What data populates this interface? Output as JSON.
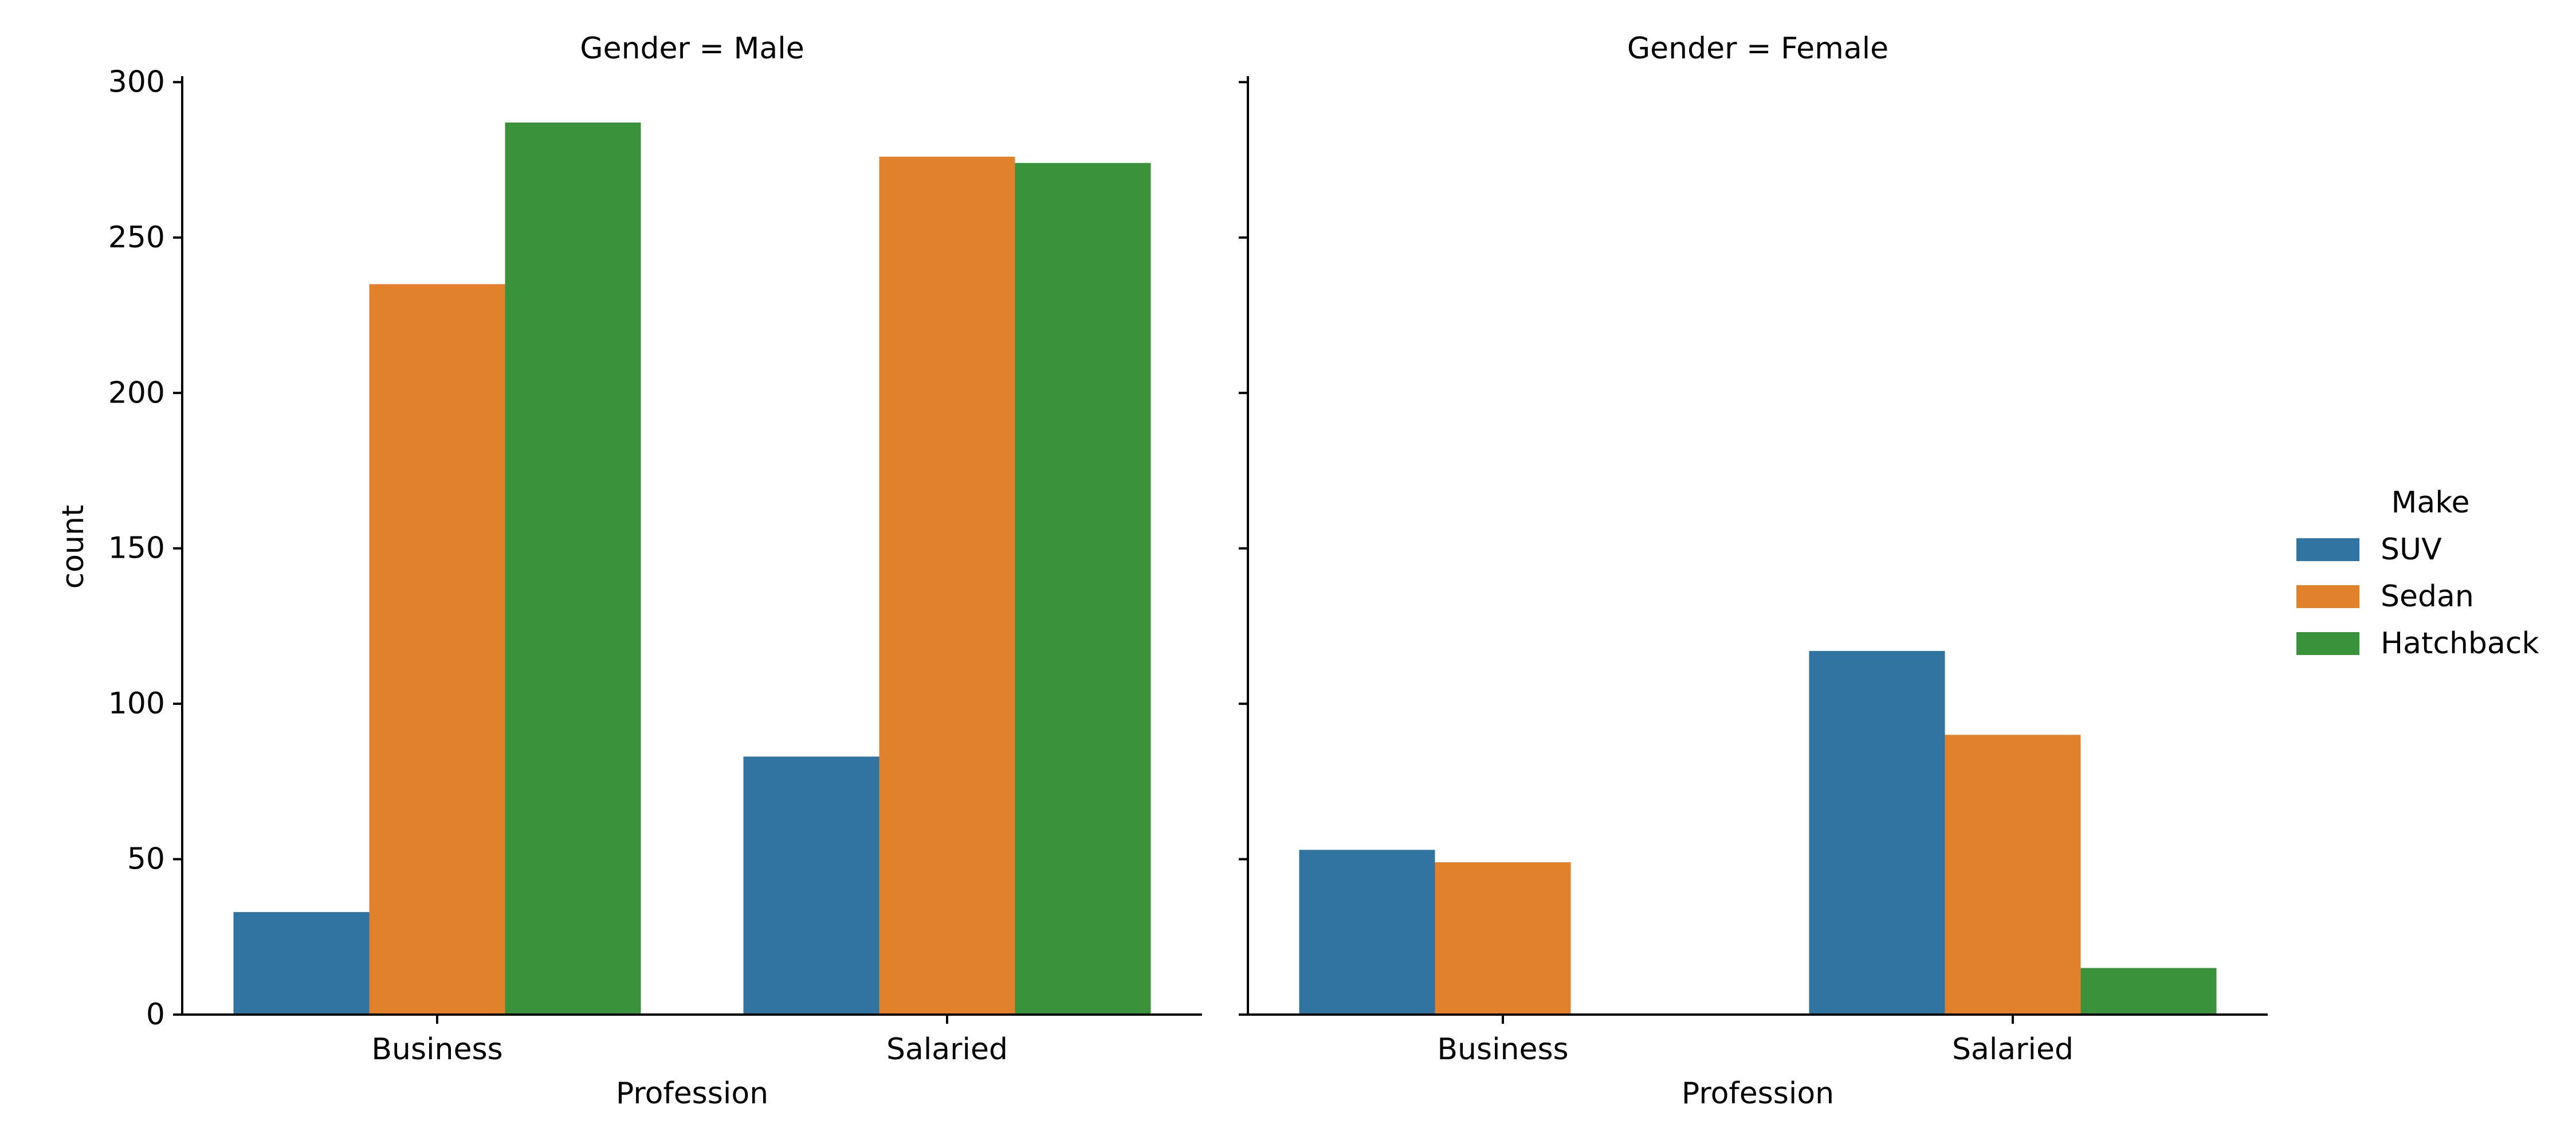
{
  "chart_data": {
    "type": "bar",
    "ylabel": "count",
    "ylim": [
      0,
      301
    ],
    "yticks": [
      0,
      50,
      100,
      150,
      200,
      250,
      300
    ],
    "categories": [
      "Business",
      "Salaried"
    ],
    "legend": {
      "title": "Make",
      "placement": "center-right",
      "entries": [
        {
          "name": "SUV",
          "color": "#3274a1"
        },
        {
          "name": "Sedan",
          "color": "#e1812c"
        },
        {
          "name": "Hatchback",
          "color": "#3a923a"
        }
      ]
    },
    "facets": [
      {
        "title": "Gender = Male",
        "xlabel": "Profession",
        "series": [
          {
            "name": "SUV",
            "values": [
              33,
              83
            ]
          },
          {
            "name": "Sedan",
            "values": [
              235,
              276
            ]
          },
          {
            "name": "Hatchback",
            "values": [
              287,
              274
            ]
          }
        ]
      },
      {
        "title": "Gender = Female",
        "xlabel": "Profession",
        "series": [
          {
            "name": "SUV",
            "values": [
              53,
              117
            ]
          },
          {
            "name": "Sedan",
            "values": [
              49,
              90
            ]
          },
          {
            "name": "Hatchback",
            "values": [
              0,
              15
            ]
          }
        ]
      }
    ]
  }
}
